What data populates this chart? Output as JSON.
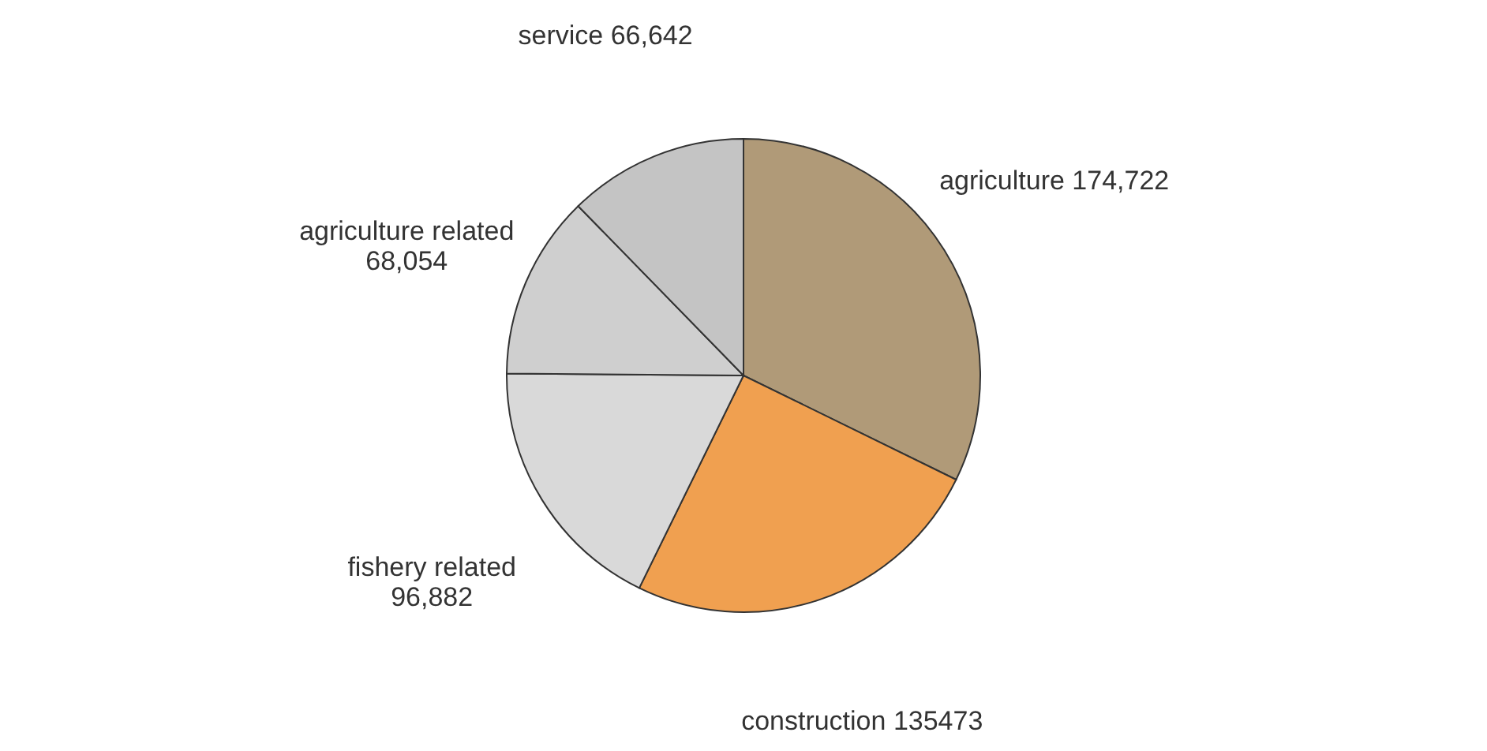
{
  "chart_data": {
    "type": "pie",
    "categories": [
      "agriculture",
      "construction",
      "fishery related",
      "agriculture related",
      "service"
    ],
    "values": [
      174722,
      135473,
      96882,
      68054,
      66642
    ],
    "colors": [
      "#b09a78",
      "#f0a050",
      "#d9d9d9",
      "#cfcfcf",
      "#c4c4c4"
    ],
    "value_labels": [
      "174,722",
      "135473",
      "96,882",
      "68,054",
      "66,642"
    ],
    "legend": false
  }
}
